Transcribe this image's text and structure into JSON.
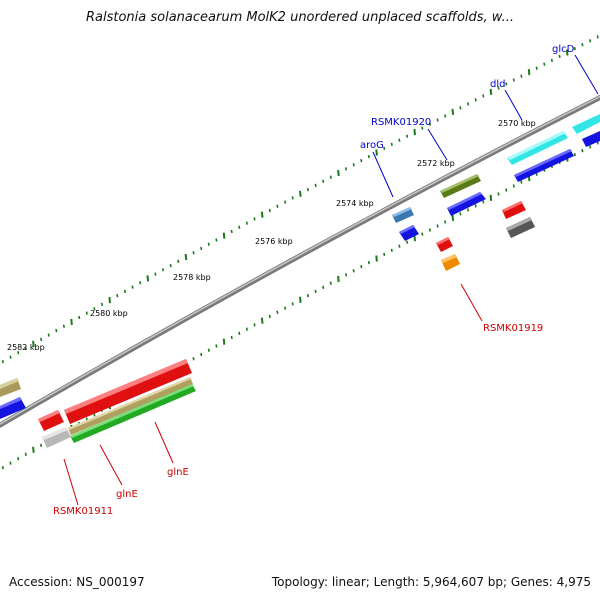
{
  "title": "Ralstonia solanacearum MolK2 unordered unplaced scaffolds, w...",
  "footer": {
    "accession": "Accession: NS_000197",
    "summary": "Topology: linear; Length: 5,964,607 bp; Genes: 4,975"
  },
  "kbp_labels": [
    "2570 kbp",
    "2572 kbp",
    "2574 kbp",
    "2576 kbp",
    "2578 kbp",
    "2580 kbp",
    "2582 kbp"
  ],
  "gene_labels": {
    "glcD": "glcD",
    "dld": "dld",
    "RSMK01920": "RSMK01920",
    "aroG": "aroG",
    "RSMK01919": "RSMK01919",
    "glnE_1": "glnE",
    "glnE_2": "glnE",
    "RSMK01911": "RSMK01911"
  },
  "colors": {
    "forward_label": "#0000cc",
    "reverse_label": "#cc0000",
    "tick": "#1a7a1a",
    "backbone": "#7a7a7a"
  }
}
